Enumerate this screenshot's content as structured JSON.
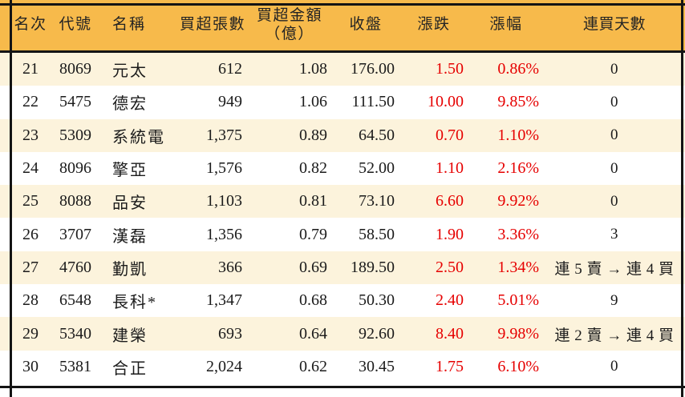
{
  "chart_data": {
    "type": "table",
    "columns": [
      {
        "key": "rank",
        "label": "名次"
      },
      {
        "key": "code",
        "label": "代號"
      },
      {
        "key": "name",
        "label": "名稱"
      },
      {
        "key": "volume",
        "label": "買超張數"
      },
      {
        "key": "amount",
        "label": "買超金額\n（億）"
      },
      {
        "key": "close",
        "label": "收盤"
      },
      {
        "key": "change",
        "label": "漲跌"
      },
      {
        "key": "pct",
        "label": "漲幅"
      },
      {
        "key": "days",
        "label": "連買天數"
      }
    ],
    "rows": [
      {
        "rank": "21",
        "code": "8069",
        "name": "元太",
        "volume": "612",
        "amount": "1.08",
        "close": "176.00",
        "change": "1.50",
        "pct": "0.86%",
        "days": "0"
      },
      {
        "rank": "22",
        "code": "5475",
        "name": "德宏",
        "volume": "949",
        "amount": "1.06",
        "close": "111.50",
        "change": "10.00",
        "pct": "9.85%",
        "days": "0"
      },
      {
        "rank": "23",
        "code": "5309",
        "name": "系統電",
        "volume": "1,375",
        "amount": "0.89",
        "close": "64.50",
        "change": "0.70",
        "pct": "1.10%",
        "days": "0"
      },
      {
        "rank": "24",
        "code": "8096",
        "name": "擎亞",
        "volume": "1,576",
        "amount": "0.82",
        "close": "52.00",
        "change": "1.10",
        "pct": "2.16%",
        "days": "0"
      },
      {
        "rank": "25",
        "code": "8088",
        "name": "品安",
        "volume": "1,103",
        "amount": "0.81",
        "close": "73.10",
        "change": "6.60",
        "pct": "9.92%",
        "days": "0"
      },
      {
        "rank": "26",
        "code": "3707",
        "name": "漢磊",
        "volume": "1,356",
        "amount": "0.79",
        "close": "58.50",
        "change": "1.90",
        "pct": "3.36%",
        "days": "3"
      },
      {
        "rank": "27",
        "code": "4760",
        "name": "勤凱",
        "volume": "366",
        "amount": "0.69",
        "close": "189.50",
        "change": "2.50",
        "pct": "1.34%",
        "days": "連 5 賣 → 連 4 買"
      },
      {
        "rank": "28",
        "code": "6548",
        "name": "長科*",
        "volume": "1,347",
        "amount": "0.68",
        "close": "50.30",
        "change": "2.40",
        "pct": "5.01%",
        "days": "9"
      },
      {
        "rank": "29",
        "code": "5340",
        "name": "建榮",
        "volume": "693",
        "amount": "0.64",
        "close": "92.60",
        "change": "8.40",
        "pct": "9.98%",
        "days": "連 2 賣 → 連 4 買"
      },
      {
        "rank": "30",
        "code": "5381",
        "name": "合正",
        "volume": "2,024",
        "amount": "0.62",
        "close": "30.45",
        "change": "1.75",
        "pct": "6.10%",
        "days": "0"
      }
    ]
  },
  "colors": {
    "header_bg": "#F7BA4B",
    "stripe_bg": "#FCF3DC",
    "plain_bg": "#FFFFFF",
    "up_red": "#E60000",
    "border": "#141414",
    "text": "#1B1B1B"
  }
}
